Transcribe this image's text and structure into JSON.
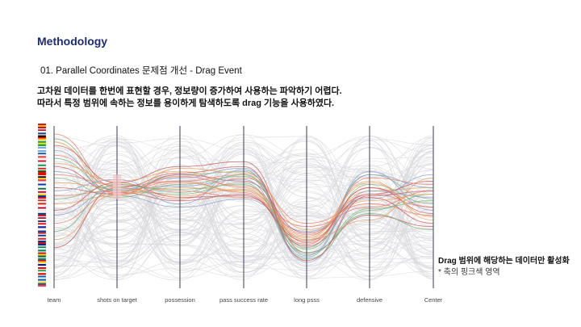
{
  "header": {
    "title": "Methodology",
    "subtitle": "01. Parallel Coordinates 문제점 개선 - Drag Event",
    "description": [
      "고차원 데이터를 한번에 표현할 경우, 정보량이 증가하여 사용하는 파악하기 어렵다.",
      "따라서 특정 범위에 속하는 정보를 용이하게 탐색하도록 drag 기능을 사용하였다."
    ]
  },
  "annotation": {
    "main": "Drag 범위에 해당하는 데이터만 활성화",
    "sub": "* 축의 핑크색 영역"
  },
  "chart_data": {
    "type": "parallel-coordinates",
    "axes": [
      "team",
      "shots on target",
      "possession",
      "pass success rate",
      "long psss",
      "defensive",
      "Center"
    ],
    "brushed_axis": "shots on target",
    "brush_range": [
      0.55,
      0.7
    ],
    "colors": {
      "axis": "#3a3f4f",
      "context": "#d9d9de",
      "highlight": [
        "#e87a6a",
        "#7fb27f",
        "#e8a060",
        "#c25a5a",
        "#8fa0c8"
      ],
      "brush": "#f4c6c6"
    },
    "team_flags": [
      "spain-flag",
      "netherlands-flag",
      "germany-flag",
      "brazil-flag",
      "argentina-flag",
      "france-flag",
      "england-flag",
      "italy-flag",
      "portugal-flag",
      "belgium-flag",
      "uruguay-flag",
      "mexico-flag",
      "colombia-flag",
      "switzerland-flag",
      "japan-flag",
      "korea-flag",
      "usa-flag",
      "croatia-flag",
      "russia-flag",
      "chile-flag",
      "costa-rica-flag",
      "nigeria-flag",
      "ghana-flag",
      "cameroon-flag",
      "australia-flag",
      "iran-flag",
      "greece-flag",
      "ecuador-flag"
    ],
    "highlighted_lines": [
      [
        0.95,
        0.62,
        0.55,
        0.68,
        0.4,
        0.52,
        0.45
      ],
      [
        0.92,
        0.6,
        0.7,
        0.72,
        0.25,
        0.7,
        0.55
      ],
      [
        0.9,
        0.58,
        0.62,
        0.6,
        0.3,
        0.6,
        0.62
      ],
      [
        0.88,
        0.65,
        0.75,
        0.78,
        0.22,
        0.45,
        0.38
      ],
      [
        0.85,
        0.57,
        0.5,
        0.55,
        0.35,
        0.55,
        0.7
      ],
      [
        0.82,
        0.63,
        0.66,
        0.7,
        0.28,
        0.62,
        0.5
      ],
      [
        0.8,
        0.6,
        0.58,
        0.65,
        0.18,
        0.48,
        0.58
      ],
      [
        0.77,
        0.66,
        0.72,
        0.62,
        0.32,
        0.66,
        0.42
      ],
      [
        0.75,
        0.59,
        0.54,
        0.58,
        0.26,
        0.58,
        0.66
      ],
      [
        0.72,
        0.61,
        0.68,
        0.74,
        0.2,
        0.72,
        0.48
      ],
      [
        0.7,
        0.64,
        0.6,
        0.56,
        0.38,
        0.5,
        0.6
      ],
      [
        0.68,
        0.56,
        0.64,
        0.69,
        0.24,
        0.64,
        0.52
      ],
      [
        0.65,
        0.62,
        0.57,
        0.61,
        0.3,
        0.42,
        0.68
      ],
      [
        0.62,
        0.58,
        0.7,
        0.66,
        0.34,
        0.56,
        0.4
      ],
      [
        0.6,
        0.67,
        0.52,
        0.73,
        0.16,
        0.6,
        0.56
      ],
      [
        0.57,
        0.6,
        0.66,
        0.59,
        0.27,
        0.68,
        0.64
      ],
      [
        0.55,
        0.63,
        0.61,
        0.64,
        0.22,
        0.46,
        0.36
      ],
      [
        0.52,
        0.57,
        0.74,
        0.71,
        0.36,
        0.54,
        0.58
      ],
      [
        0.48,
        0.65,
        0.56,
        0.57,
        0.29,
        0.62,
        0.46
      ],
      [
        0.45,
        0.61,
        0.63,
        0.67,
        0.19,
        0.7,
        0.62
      ],
      [
        0.4,
        0.59,
        0.69,
        0.63,
        0.33,
        0.58,
        0.5
      ],
      [
        0.35,
        0.64,
        0.59,
        0.7,
        0.21,
        0.49,
        0.54
      ],
      [
        0.3,
        0.58,
        0.65,
        0.6,
        0.31,
        0.65,
        0.44
      ],
      [
        0.25,
        0.62,
        0.71,
        0.75,
        0.17,
        0.57,
        0.6
      ]
    ]
  }
}
